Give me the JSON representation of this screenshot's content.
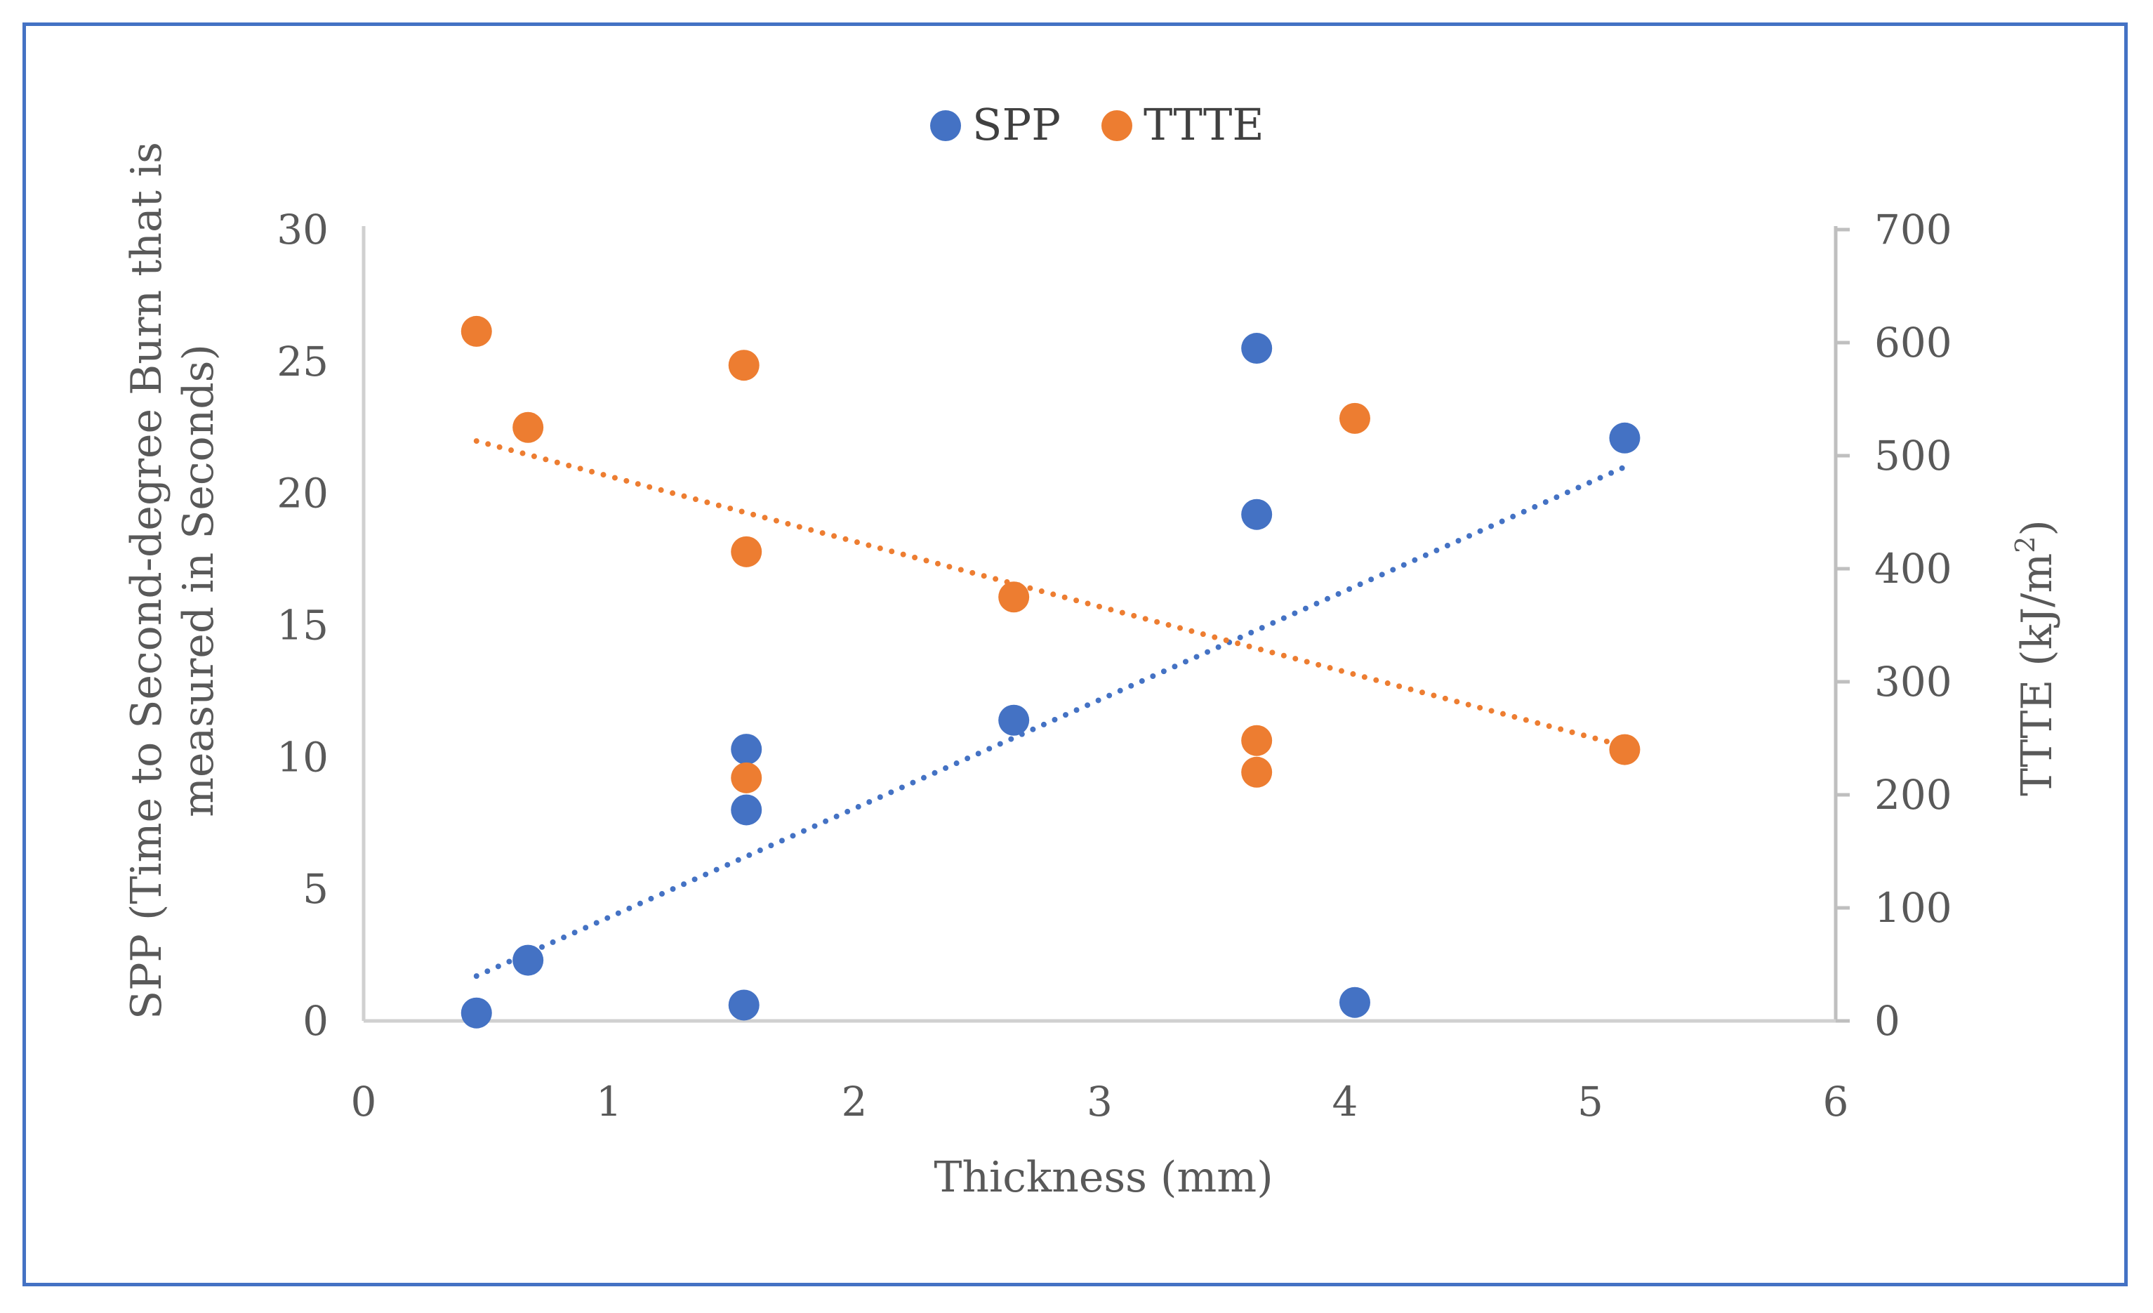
{
  "chart_data": {
    "type": "scatter",
    "title": "",
    "xlabel": "Thickness (mm)",
    "ylabel": "SPP (Time to Second-degree Burn that is measured in Seconds)",
    "ylabel_lines": [
      "SPP (Time to Second-degree Burn that is",
      "measured in Seconds)"
    ],
    "y2label": "TTTE (kJ/m²)",
    "y2label_main": "TTTE (kJ/m",
    "y2label_sup": "2",
    "y2label_end": ")",
    "xlim": [
      0,
      6
    ],
    "ylim": [
      0,
      30
    ],
    "y2lim": [
      0,
      700
    ],
    "xticks": [
      "0",
      "1",
      "2",
      "3",
      "4",
      "5",
      "6"
    ],
    "yticks": [
      "0",
      "5",
      "10",
      "15",
      "20",
      "25",
      "30"
    ],
    "y2ticks": [
      "0",
      "100",
      "200",
      "300",
      "400",
      "500",
      "600",
      "700"
    ],
    "legend_position": "top-center",
    "series": [
      {
        "name": "SPP",
        "axis": "left",
        "color": "#4472c4",
        "x": [
          0.46,
          0.67,
          1.55,
          1.56,
          1.56,
          2.65,
          3.64,
          3.64,
          4.04,
          5.14
        ],
        "y": [
          0.3,
          2.3,
          0.6,
          8.0,
          10.3,
          11.4,
          25.5,
          19.2,
          0.7,
          22.1
        ],
        "trendline": {
          "type": "linear",
          "x": [
            0.46,
            5.14
          ],
          "y": [
            1.7,
            21.0
          ]
        }
      },
      {
        "name": "TTTE",
        "axis": "right",
        "color": "#ed7d31",
        "x": [
          0.46,
          0.67,
          1.55,
          1.56,
          1.56,
          2.65,
          3.64,
          3.64,
          4.04,
          5.14
        ],
        "y": [
          610,
          525,
          580,
          415,
          215,
          375,
          248,
          220,
          533,
          240
        ],
        "trendline": {
          "type": "linear",
          "x": [
            0.46,
            5.14
          ],
          "y": [
            513,
            243
          ]
        }
      }
    ]
  }
}
